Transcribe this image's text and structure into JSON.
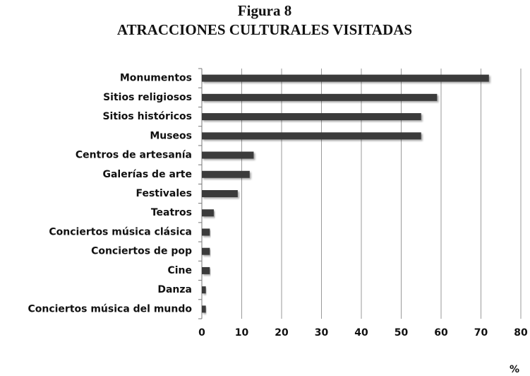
{
  "chart_data": {
    "type": "bar",
    "orientation": "horizontal",
    "title": "Figura 8",
    "subtitle": "ATRACCIONES CULTURALES VISITADAS",
    "categories": [
      "Monumentos",
      "Sitios religiosos",
      "Sitios históricos",
      "Museos",
      "Centros de artesanía",
      "Galerías de arte",
      "Festivales",
      "Teatros",
      "Conciertos música clásica",
      "Conciertos de pop",
      "Cine",
      "Danza",
      "Conciertos música del mundo"
    ],
    "values": [
      72,
      59,
      55,
      55,
      13,
      12,
      9,
      3,
      2,
      2,
      2,
      1,
      1
    ],
    "color": "#3a3a3a",
    "xlim": [
      0,
      80
    ],
    "xticks": [
      0,
      10,
      20,
      30,
      40,
      50,
      60,
      70,
      80
    ],
    "x_label": "%",
    "grid": true
  }
}
